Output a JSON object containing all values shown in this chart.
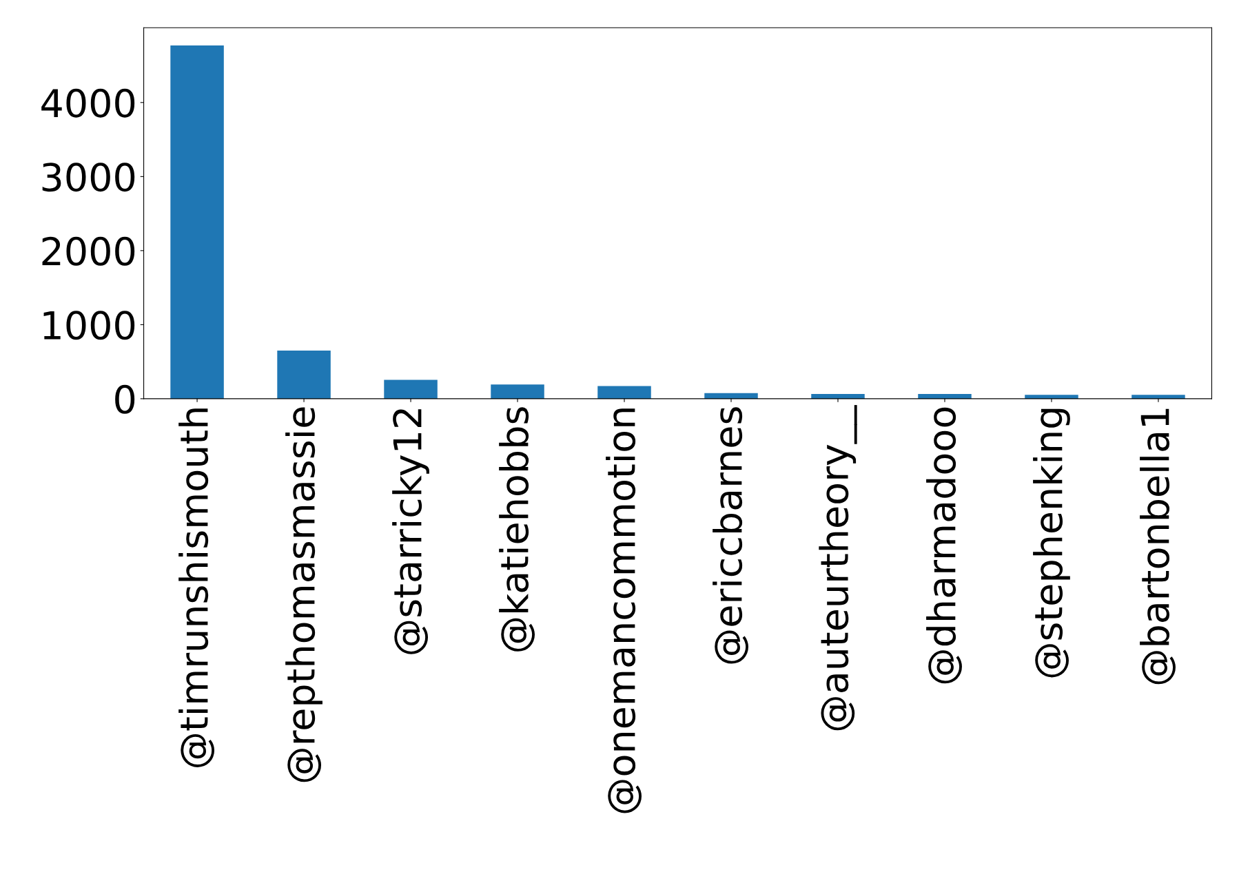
{
  "chart_data": {
    "type": "bar",
    "categories": [
      "@timrunshismouth",
      "@repthomasmassie",
      "@starricky12",
      "@katiehobbs",
      "@onemancommotion",
      "@ericcbarnes",
      "@auteurtheory__",
      "@dharmadooo",
      "@stephenking",
      "@bartonbella1"
    ],
    "values": [
      4770,
      650,
      256,
      192,
      171,
      75,
      64,
      64,
      53,
      53
    ],
    "color": "#1f77b4",
    "ylim": [
      0,
      5010
    ],
    "yticks": [
      0,
      1000,
      2000,
      3000,
      4000
    ],
    "grid": false,
    "legend": false
  }
}
